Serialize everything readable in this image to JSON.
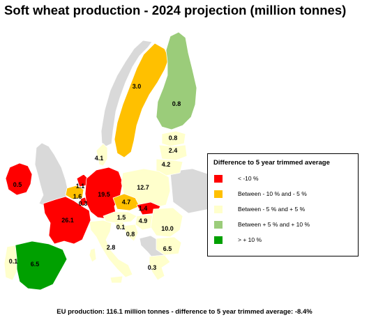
{
  "title": "Soft wheat production - 2024 projection  (million tonnes)",
  "colors": {
    "lt_minus10": "#ff0000",
    "minus10_minus5": "#ffc000",
    "minus5_plus5": "#ffffcc",
    "plus5_plus10": "#9bcc7a",
    "gt_plus10": "#00a000",
    "non_eu": "#d9d9d9",
    "border": "#ffffff"
  },
  "legend": {
    "title": "Difference to 5 year trimmed average",
    "items": [
      {
        "label": "<  -10 %",
        "color": "#ff0000"
      },
      {
        "label": "Between  - 10 %  and  - 5 %",
        "color": "#ffc000"
      },
      {
        "label": "Between  - 5 %  and  + 5 %",
        "color": "#ffffcc"
      },
      {
        "label": "Between  + 5 %  and  + 10 %",
        "color": "#9bcc7a"
      },
      {
        "label": ">  + 10 %",
        "color": "#00a000"
      }
    ]
  },
  "map_values": [
    {
      "id": "sweden",
      "text": "3.0"
    },
    {
      "id": "finland",
      "text": "0.8"
    },
    {
      "id": "estonia",
      "text": "0.8"
    },
    {
      "id": "latvia",
      "text": "2.4"
    },
    {
      "id": "lithuania",
      "text": "4.2"
    },
    {
      "id": "denmark",
      "text": "4.1"
    },
    {
      "id": "ireland",
      "text": "0.5"
    },
    {
      "id": "netherlands",
      "text": "1.1"
    },
    {
      "id": "belgium",
      "text": "1.6"
    },
    {
      "id": "luxembourg",
      "text": "0.3"
    },
    {
      "id": "germany",
      "text": "19.5"
    },
    {
      "id": "poland",
      "text": "12.7"
    },
    {
      "id": "czechia",
      "text": "4.7"
    },
    {
      "id": "slovakia",
      "text": "1.4"
    },
    {
      "id": "austria",
      "text": "1.5"
    },
    {
      "id": "hungary",
      "text": "4.9"
    },
    {
      "id": "france",
      "text": "26.1"
    },
    {
      "id": "slovenia",
      "text": "0.1"
    },
    {
      "id": "croatia",
      "text": "0.8"
    },
    {
      "id": "romania",
      "text": "10.0"
    },
    {
      "id": "bulgaria",
      "text": "6.5"
    },
    {
      "id": "italy",
      "text": "2.8"
    },
    {
      "id": "greece",
      "text": "0.3"
    },
    {
      "id": "portugal",
      "text": "0.1"
    },
    {
      "id": "spain",
      "text": "6.5"
    }
  ],
  "footer": "EU production: 116.1 million tonnes - difference to 5 year trimmed average: -8.4%"
}
